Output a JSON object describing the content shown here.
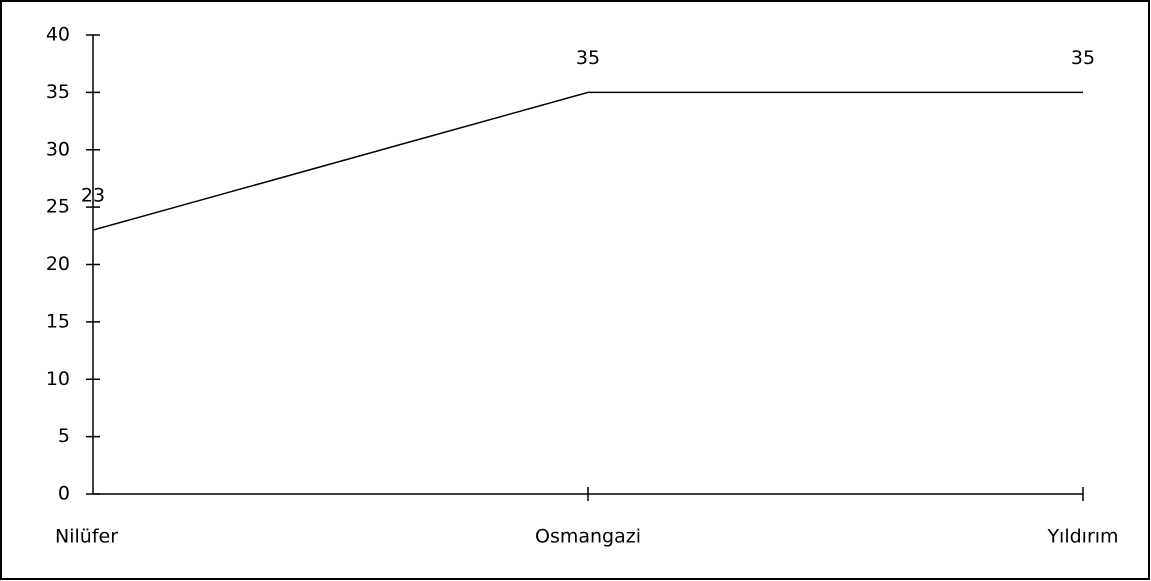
{
  "chart_data": {
    "type": "line",
    "categories": [
      "Nilüfer",
      "Osmangazi",
      "Yıldırım"
    ],
    "values": [
      23,
      35,
      35
    ],
    "color": "#000000",
    "ylim": [
      0,
      40
    ],
    "yticks": [
      0,
      5,
      10,
      15,
      20,
      25,
      30,
      35,
      40
    ],
    "data_labels": true
  }
}
